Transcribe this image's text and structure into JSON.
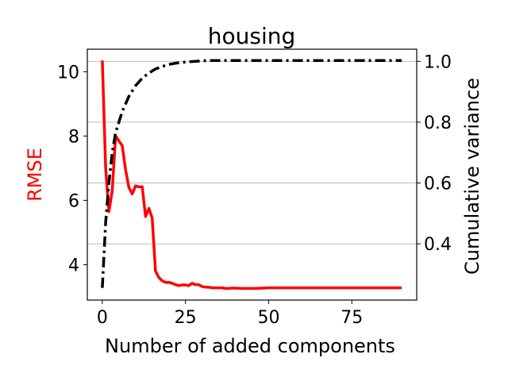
{
  "chart_data": {
    "type": "line",
    "title": "housing",
    "xlabel": "Number of added components",
    "ylabel_left": "RMSE",
    "ylabel_right": "Cumulative variance",
    "xlim": [
      -4.5,
      94.5
    ],
    "ylim_left": [
      2.9,
      10.7
    ],
    "ylim_right": [
      0.215,
      1.04
    ],
    "x_ticks": [
      0,
      25,
      50,
      75
    ],
    "y_left_ticks": [
      4,
      6,
      8,
      10
    ],
    "y_right_ticks": [
      0.4,
      0.6,
      0.8,
      1.0
    ],
    "y_right_tick_labels": [
      "0.4",
      "0.6",
      "0.8",
      "1.0"
    ],
    "grid": "horizontal, right axis",
    "colors": {
      "rmse": "#ff0000",
      "variance": "#000000",
      "grid": "#b0b0b0"
    },
    "series": [
      {
        "axis": "left",
        "style": "solid",
        "x": [
          0,
          1,
          2,
          3,
          4,
          5,
          6,
          7,
          8,
          9,
          10,
          11,
          12,
          13,
          14,
          15,
          16,
          17,
          18,
          19,
          20,
          21,
          22,
          23,
          24,
          25,
          26,
          27,
          28,
          29,
          30,
          31,
          32,
          33,
          34,
          35,
          36,
          37,
          38,
          39,
          40,
          42,
          44,
          46,
          48,
          50,
          55,
          60,
          65,
          70,
          75,
          80,
          85,
          90
        ],
        "values": [
          10.35,
          7.0,
          5.65,
          6.3,
          8.0,
          7.85,
          7.7,
          6.95,
          6.4,
          6.2,
          6.45,
          6.42,
          6.42,
          5.5,
          5.75,
          5.45,
          3.8,
          3.6,
          3.5,
          3.45,
          3.45,
          3.42,
          3.38,
          3.35,
          3.37,
          3.37,
          3.35,
          3.42,
          3.38,
          3.38,
          3.32,
          3.3,
          3.3,
          3.28,
          3.28,
          3.28,
          3.28,
          3.26,
          3.26,
          3.27,
          3.27,
          3.26,
          3.26,
          3.26,
          3.27,
          3.28,
          3.28,
          3.28,
          3.28,
          3.28,
          3.28,
          3.28,
          3.28,
          3.28
        ]
      },
      {
        "axis": "right",
        "style": "dashdot",
        "x": [
          0,
          1,
          2,
          3,
          4,
          5,
          6,
          7,
          8,
          10,
          12,
          14,
          16,
          18,
          20,
          22,
          25,
          28,
          30,
          33,
          36,
          40,
          50,
          60,
          70,
          80,
          90
        ],
        "values": [
          0.255,
          0.47,
          0.6,
          0.7,
          0.765,
          0.8,
          0.835,
          0.86,
          0.885,
          0.92,
          0.945,
          0.962,
          0.975,
          0.983,
          0.99,
          0.994,
          0.998,
          1.0,
          1.002,
          1.003,
          1.003,
          1.003,
          1.003,
          1.003,
          1.003,
          1.003,
          1.003
        ]
      }
    ]
  }
}
